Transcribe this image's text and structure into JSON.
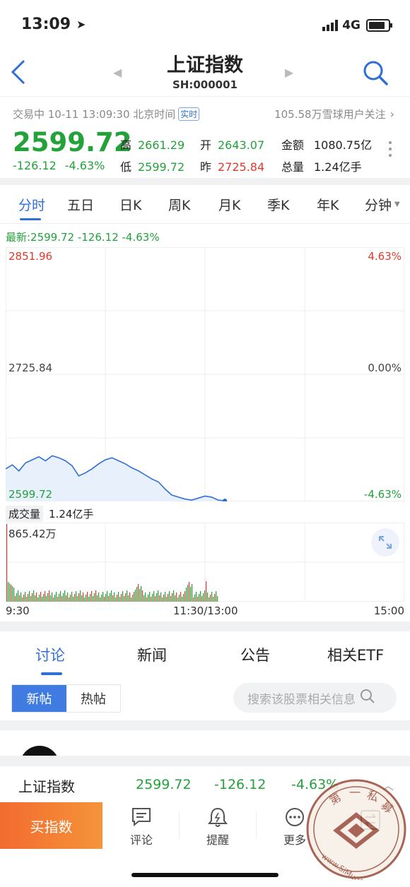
{
  "status": {
    "time": "13:09",
    "network": "4G"
  },
  "header": {
    "title": "上证指数",
    "code": "SH:000001"
  },
  "info": {
    "status_text": "交易中 10-11 13:09:30 北京时间",
    "realtime_badge": "实时",
    "followers": "105.58万雪球用户关注"
  },
  "quote": {
    "price": "2599.72",
    "change": "-126.12",
    "change_pct": "-4.63%",
    "high_label": "高",
    "high": "2661.29",
    "low_label": "低",
    "low": "2599.72",
    "open_label": "开",
    "open": "2643.07",
    "prev_label": "昨",
    "prev": "2725.84",
    "amount_label": "金额",
    "amount": "1080.75亿",
    "volume_label": "总量",
    "volume": "1.24亿手"
  },
  "chart_tabs": [
    "分时",
    "五日",
    "日K",
    "周K",
    "月K",
    "季K",
    "年K",
    "分钟"
  ],
  "chart": {
    "latest": "最新:2599.72  -126.12  -4.63%",
    "y_top": "2851.96",
    "y_mid": "2725.84",
    "y_bottom": "2599.72",
    "pct_top": "4.63%",
    "pct_mid": "0.00%",
    "pct_bottom": "-4.63%",
    "volume_label": "成交量",
    "volume_value": "1.24亿手",
    "volume_max": "865.42万",
    "x_start": "9:30",
    "x_mid": "11:30/13:00",
    "x_end": "15:00",
    "colors": {
      "up": "#e0392b",
      "down": "#23a23a",
      "line": "#2f6fd6"
    }
  },
  "chart_data": {
    "type": "line",
    "title": "",
    "ylim": [
      2599.72,
      2851.96
    ],
    "x_range": [
      "9:30",
      "15:00"
    ],
    "series": [
      {
        "name": "",
        "values": [
          2632,
          2636,
          2630,
          2638,
          2641,
          2644,
          2640,
          2645,
          2643,
          2640,
          2635,
          2625,
          2628,
          2632,
          2637,
          2641,
          2643,
          2640,
          2637,
          2633,
          2630,
          2626,
          2622,
          2619,
          2612,
          2606,
          2604,
          2602,
          2601,
          2603,
          2605,
          2604,
          2601,
          2599.72
        ]
      }
    ]
  },
  "sections": {
    "tabs": [
      "讨论",
      "新闻",
      "公告",
      "相关ETF"
    ],
    "sub_tabs": [
      "新帖",
      "热帖"
    ],
    "search_placeholder": "搜索该股票相关信息"
  },
  "bottom_ticker": {
    "name": "上证指数",
    "price": "2599.72",
    "change": "-126.12",
    "pct": "-4.63%"
  },
  "bottom_bar": {
    "buy": "买指数",
    "items": [
      "评论",
      "提醒",
      "更多"
    ]
  },
  "watermark": {
    "text1": "第一私募",
    "text2": "www.SiMu001.cn"
  }
}
